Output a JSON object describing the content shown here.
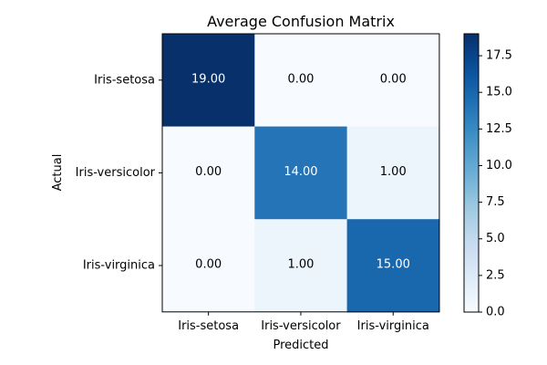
{
  "chart_data": {
    "type": "heatmap",
    "title": "Average Confusion Matrix",
    "xlabel": "Predicted",
    "ylabel": "Actual",
    "x_categories": [
      "Iris-setosa",
      "Iris-versicolor",
      "Iris-virginica"
    ],
    "y_categories": [
      "Iris-setosa",
      "Iris-versicolor",
      "Iris-virginica"
    ],
    "values": [
      [
        19.0,
        0.0,
        0.0
      ],
      [
        0.0,
        14.0,
        1.0
      ],
      [
        0.0,
        1.0,
        15.0
      ]
    ],
    "cell_labels": [
      [
        "19.00",
        "0.00",
        "0.00"
      ],
      [
        "0.00",
        "14.00",
        "1.00"
      ],
      [
        "0.00",
        "1.00",
        "15.00"
      ]
    ],
    "colormap": "Blues",
    "color_low": "#f7fbff",
    "color_high": "#08306b",
    "text_color_dark_cell": "#ffffff",
    "text_color_light_cell": "#000000",
    "colorbar": {
      "range": [
        0,
        19
      ],
      "ticks": [
        0.0,
        2.5,
        5.0,
        7.5,
        10.0,
        12.5,
        15.0,
        17.5
      ],
      "tick_labels": [
        "0.0",
        "2.5",
        "5.0",
        "7.5",
        "10.0",
        "12.5",
        "15.0",
        "17.5"
      ]
    },
    "grid": false
  }
}
